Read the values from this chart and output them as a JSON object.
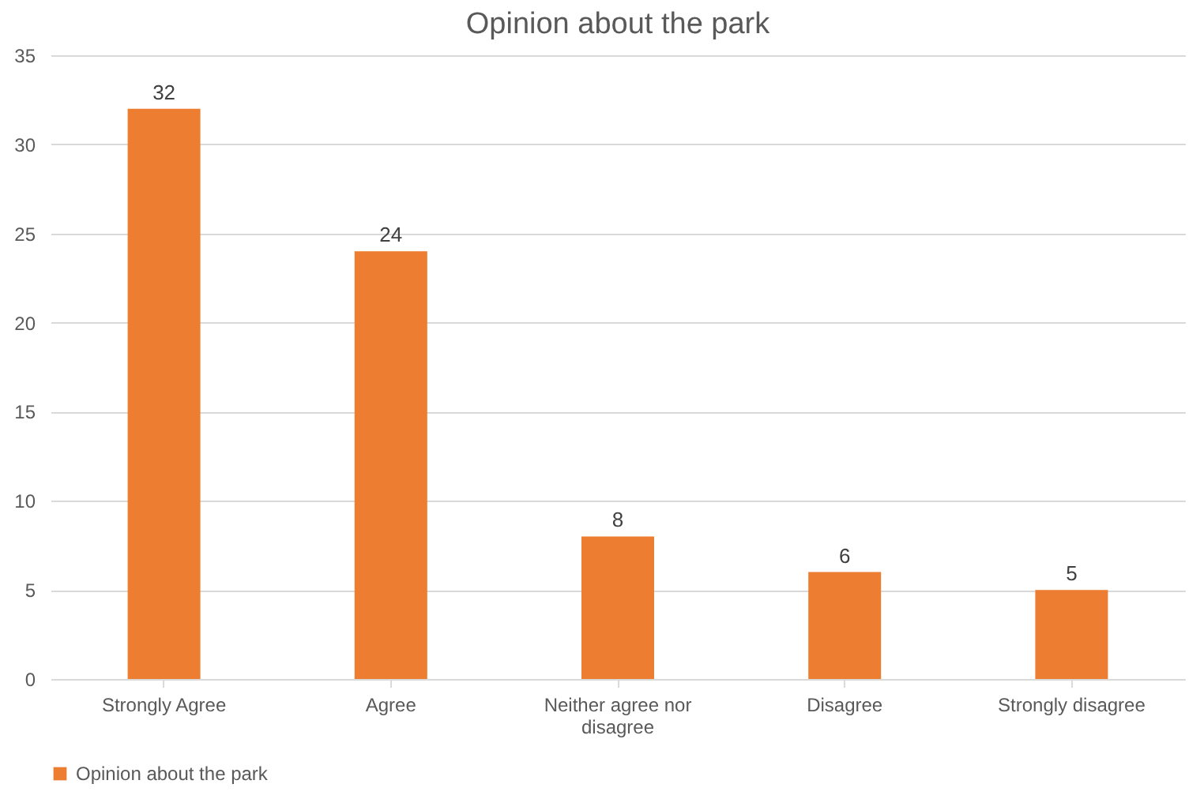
{
  "chart_data": {
    "type": "bar",
    "title": "Opinion about the park",
    "categories": [
      "Strongly Agree",
      "Agree",
      "Neither agree nor disagree",
      "Disagree",
      "Strongly disagree"
    ],
    "series": [
      {
        "name": "Opinion about the park",
        "color": "#ed7d31",
        "values": [
          32,
          24,
          8,
          6,
          5
        ]
      }
    ],
    "ylim": [
      0,
      35
    ],
    "yticks": [
      0,
      5,
      10,
      15,
      20,
      25,
      30,
      35
    ],
    "grid": "y",
    "legend": "bottom",
    "data_labels": true
  }
}
